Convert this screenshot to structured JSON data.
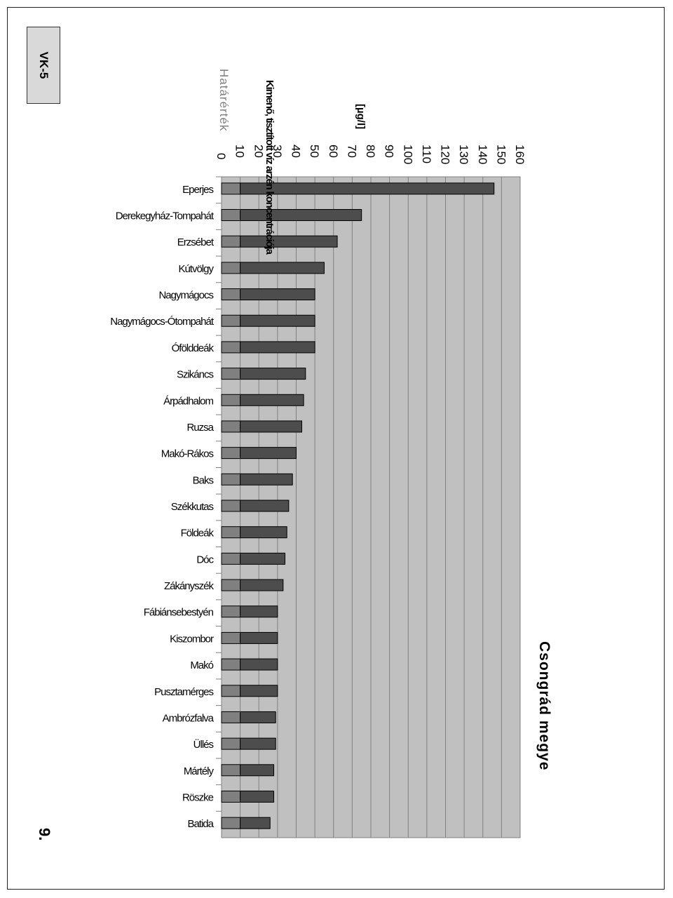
{
  "badge": "VK-5",
  "page_number": "9.",
  "county": "Csongrád megye",
  "colors": {
    "plot_bg": "#c0c0c0",
    "limit_segment": "#808080",
    "bar": "#4d4d4d",
    "limit_label": "#808080"
  },
  "chart_data": {
    "type": "bar",
    "orientation": "horizontal",
    "title": "Kimenő, tisztított víz arzén koncentrációja",
    "unit": "[µg/l]",
    "limit_label": "Határérték",
    "limit_value": 10,
    "xlim": [
      0,
      160
    ],
    "ticks": [
      0,
      10,
      20,
      30,
      40,
      50,
      60,
      70,
      80,
      90,
      100,
      110,
      120,
      130,
      140,
      150,
      160
    ],
    "grid": true,
    "categories": [
      "Eperjes",
      "Derekegyház-Tompahát",
      "Erzsébet",
      "Kútvölgy",
      "Nagymágocs",
      "Nagymágocs-Ótompahát",
      "Ófölddeák",
      "Szikáncs",
      "Árpádhalom",
      "Ruzsa",
      "Makó-Rákos",
      "Baks",
      "Székkutas",
      "Földeák",
      "Dóc",
      "Zákányszék",
      "Fábiánsebestyén",
      "Kiszombor",
      "Makó",
      "Pusztamérges",
      "Ambrózfalva",
      "Üllés",
      "Mártély",
      "Röszke",
      "Batida"
    ],
    "values": [
      146,
      75,
      62,
      55,
      50,
      50,
      50,
      45,
      44,
      43,
      40,
      38,
      36,
      35,
      34,
      33,
      30,
      30,
      30,
      30,
      29,
      29,
      28,
      28,
      26
    ]
  }
}
